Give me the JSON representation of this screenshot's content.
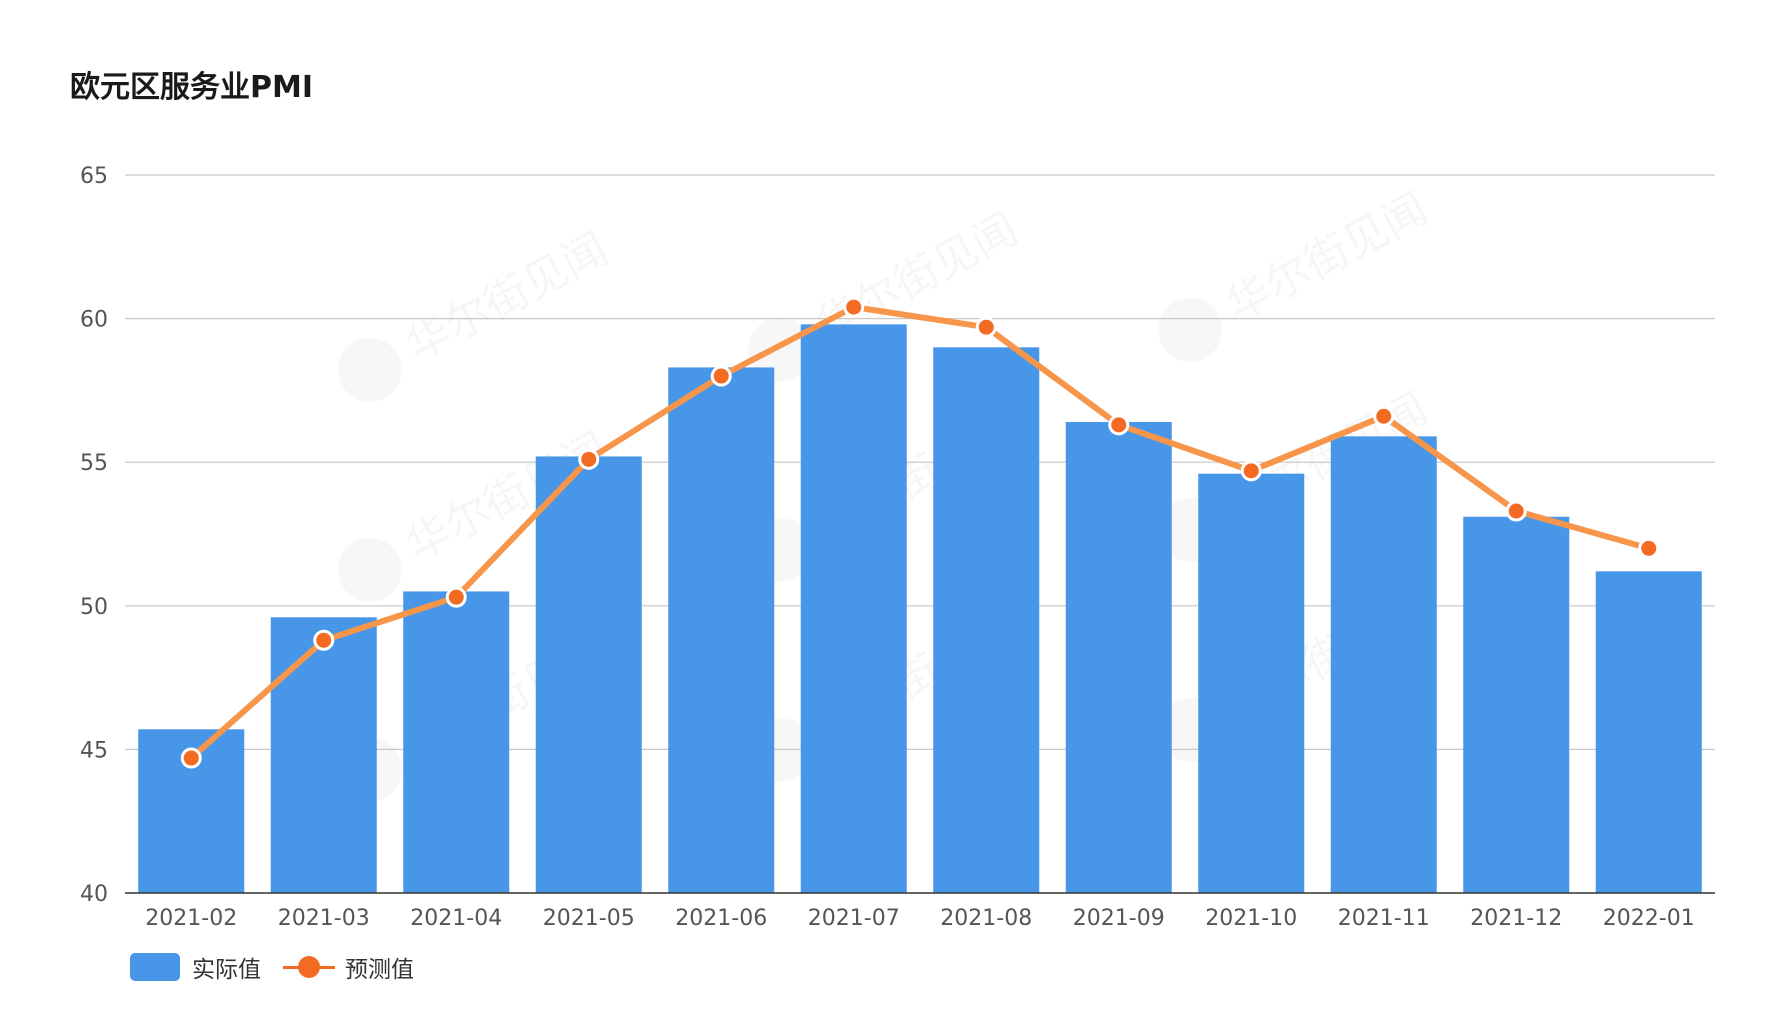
{
  "title": "欧元区服务业PMI",
  "watermark_text": "华尔街见闻",
  "colors": {
    "bar": "#4796E8",
    "line": "#F7964A",
    "point": "#F36B22",
    "grid": "#C8C8C8",
    "axis": "#333333"
  },
  "legend": {
    "actual_label": "实际值",
    "forecast_label": "预测值"
  },
  "chart_data": {
    "type": "bar",
    "title": "欧元区服务业PMI",
    "xlabel": "",
    "ylabel": "",
    "ylim": [
      40,
      65
    ],
    "yticks": [
      40,
      45,
      50,
      55,
      60,
      65
    ],
    "grid": true,
    "legend_position": "bottom-left",
    "categories": [
      "2021-02",
      "2021-03",
      "2021-04",
      "2021-05",
      "2021-06",
      "2021-07",
      "2021-08",
      "2021-09",
      "2021-10",
      "2021-11",
      "2021-12",
      "2022-01"
    ],
    "series": [
      {
        "name": "实际值",
        "type": "bar",
        "values": [
          45.7,
          49.6,
          50.5,
          55.2,
          58.3,
          59.8,
          59.0,
          56.4,
          54.6,
          55.9,
          53.1,
          51.2
        ]
      },
      {
        "name": "预测值",
        "type": "line",
        "values": [
          44.7,
          48.8,
          50.3,
          55.1,
          58.0,
          60.4,
          59.7,
          56.3,
          54.7,
          56.6,
          53.3,
          52.0
        ]
      }
    ]
  }
}
